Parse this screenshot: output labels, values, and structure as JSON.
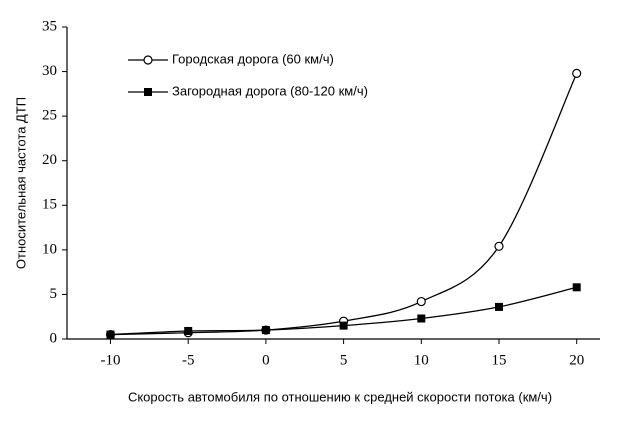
{
  "chart_data": {
    "type": "line",
    "y_label": "Относительная частота ДТП",
    "x_label": "Скорость автомобиля по отношению к средней скорости потока (км/ч)",
    "x": [
      -10,
      -5,
      0,
      5,
      10,
      15,
      20
    ],
    "series": [
      {
        "name": "Городская дорога (60 км/ч)",
        "color": "#000000",
        "marker": "circle-open",
        "values": [
          0.5,
          0.7,
          1,
          2,
          4.2,
          10.4,
          29.8
        ]
      },
      {
        "name": "Загородная дорога (80-120 км/ч)",
        "color": "#000000",
        "marker": "square",
        "values": [
          0.5,
          0.9,
          1,
          1.5,
          2.3,
          3.6,
          5.8
        ]
      }
    ],
    "xlim": [
      -12.8,
      21.5
    ],
    "xticks": [
      -10,
      -5,
      0,
      5,
      10,
      15,
      20
    ],
    "ylim": [
      0,
      35
    ],
    "yticks": [
      0,
      5,
      10,
      15,
      20,
      25,
      30,
      35
    ],
    "grid": false,
    "legend": "upper-left"
  }
}
